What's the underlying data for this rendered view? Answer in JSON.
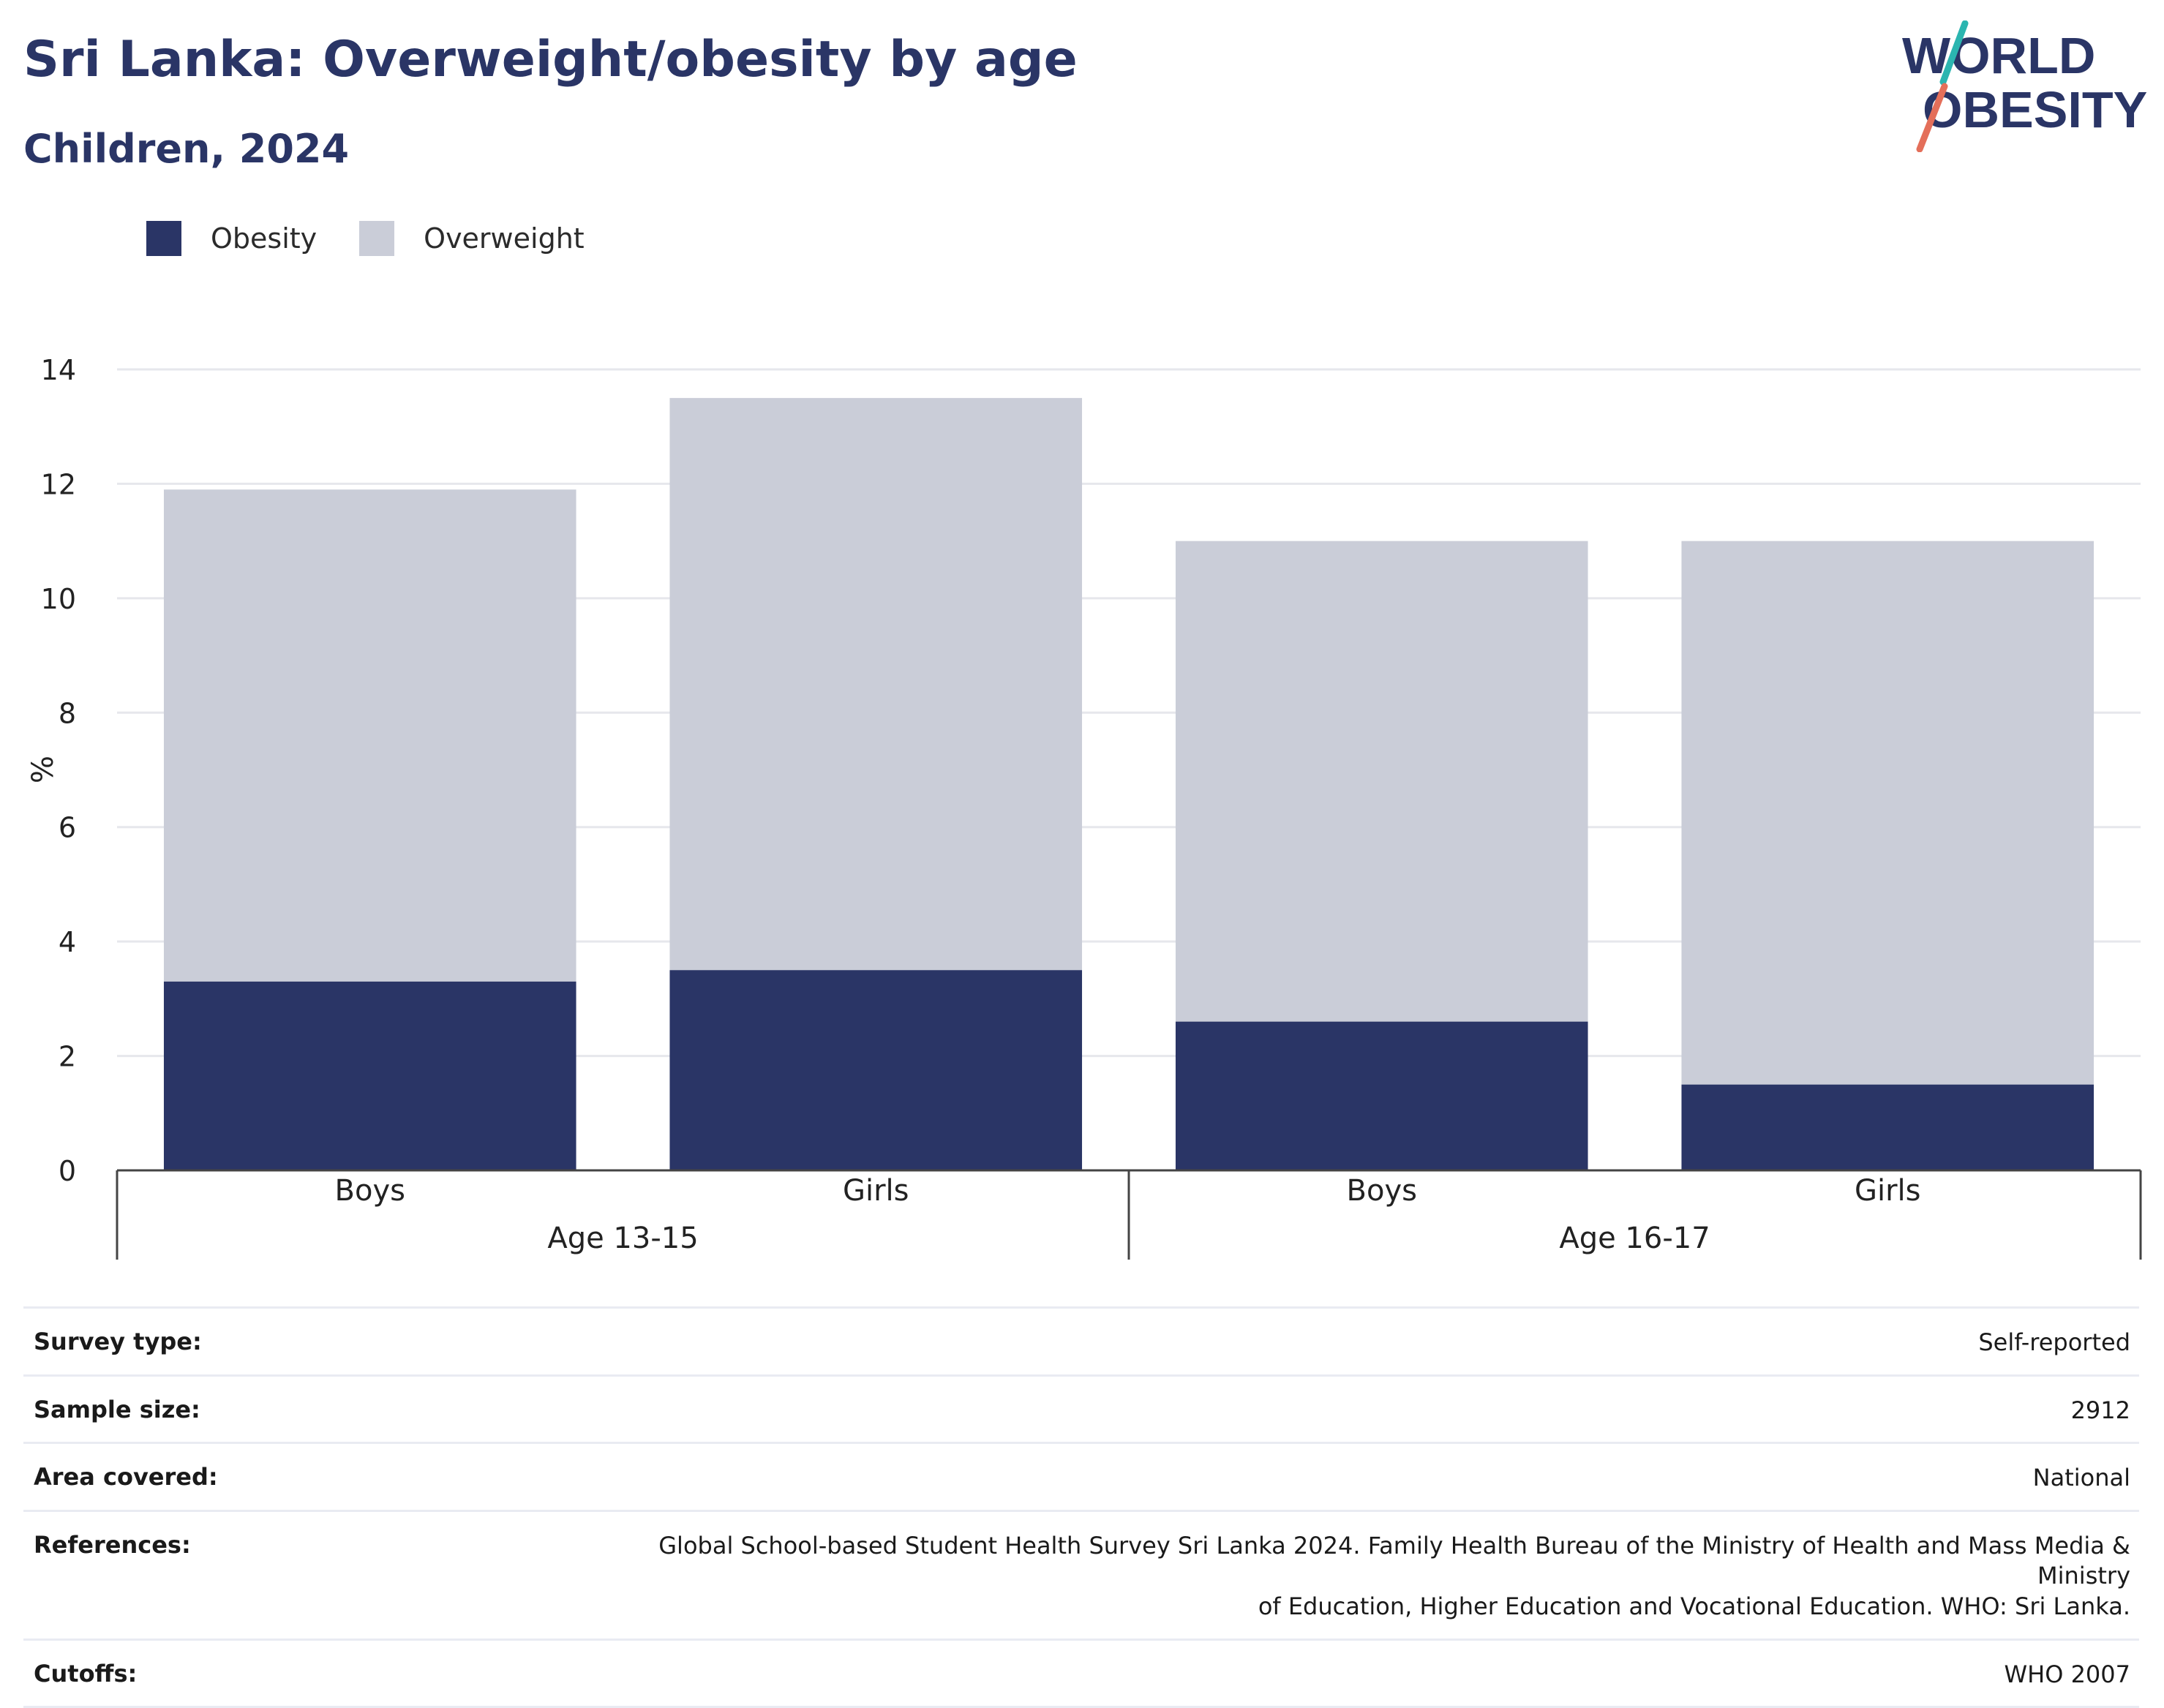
{
  "header": {
    "title": "Sri Lanka: Overweight/obesity by age",
    "subtitle": "Children, 2024"
  },
  "logo": {
    "line1": "WORLD",
    "line2": "OBESITY",
    "colors": {
      "text": "#2a3566",
      "slash_top": "#2bb5b0",
      "slash_bottom": "#e46f5a"
    }
  },
  "colors": {
    "obesity": "#2a3566",
    "overweight": "#cacdd8",
    "grid": "#e6e7ec",
    "axis": "#444444"
  },
  "legend": [
    {
      "label": "Obesity",
      "color": "#2a3566"
    },
    {
      "label": "Overweight",
      "color": "#cacdd8"
    }
  ],
  "chart_data": {
    "type": "bar",
    "stacked": true,
    "ylabel": "%",
    "ylim": [
      0,
      14
    ],
    "yticks": [
      0,
      2,
      4,
      6,
      8,
      10,
      12,
      14
    ],
    "grid": true,
    "legend_position": "top-left",
    "groups": [
      {
        "label": "Age 13-15",
        "categories": [
          "Boys",
          "Girls"
        ]
      },
      {
        "label": "Age 16-17",
        "categories": [
          "Boys",
          "Girls"
        ]
      }
    ],
    "categories": [
      "Boys",
      "Girls",
      "Boys",
      "Girls"
    ],
    "series": [
      {
        "name": "Obesity",
        "values": [
          3.3,
          3.5,
          2.6,
          1.5
        ]
      },
      {
        "name": "Overweight",
        "values": [
          8.6,
          10.0,
          8.4,
          9.5
        ]
      }
    ],
    "totals": [
      11.9,
      13.5,
      11.0,
      11.0
    ]
  },
  "info": [
    {
      "key": "Survey type:",
      "value": [
        "Self-reported"
      ]
    },
    {
      "key": "Sample size:",
      "value": [
        "2912"
      ]
    },
    {
      "key": "Area covered:",
      "value": [
        "National"
      ]
    },
    {
      "key": "References:",
      "value": [
        "Global School-based Student Health Survey Sri Lanka 2024. Family Health Bureau of the Ministry of Health and Mass Media & Ministry",
        "of Education, Higher Education and Vocational Education. WHO: Sri Lanka."
      ]
    },
    {
      "key": "Cutoffs:",
      "value": [
        "WHO 2007"
      ]
    }
  ]
}
